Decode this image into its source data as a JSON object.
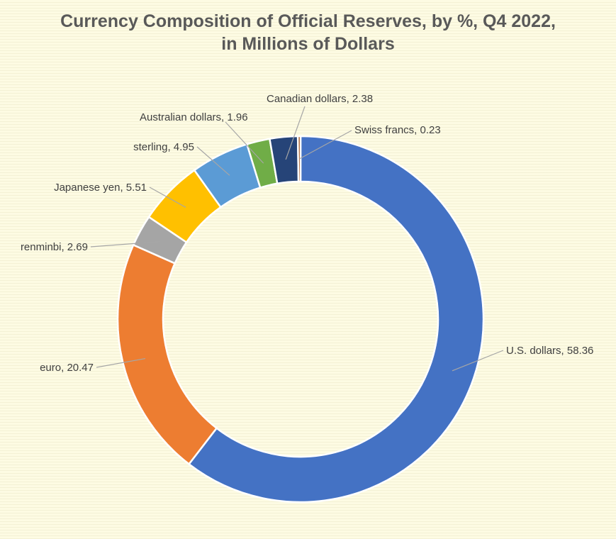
{
  "chart_data": {
    "type": "pie",
    "variant": "donut",
    "title_lines": [
      "Currency Composition of Official Reserves, by %, Q4 2022,",
      "in Millions of Dollars"
    ],
    "legend": "none",
    "slices": [
      {
        "name": "U.S. dollars",
        "value": 58.36,
        "color": "#4472c4",
        "label": "U.S. dollars, 58.36"
      },
      {
        "name": "euro",
        "value": 20.47,
        "color": "#ed7d31",
        "label": "euro, 20.47"
      },
      {
        "name": "renminbi",
        "value": 2.69,
        "color": "#a5a5a5",
        "label": "renminbi, 2.69"
      },
      {
        "name": "Japanese yen",
        "value": 5.51,
        "color": "#ffc000",
        "label": "Japanese yen, 5.51"
      },
      {
        "name": "sterling",
        "value": 4.95,
        "color": "#5b9bd5",
        "label": "sterling, 4.95"
      },
      {
        "name": "Australian dollars",
        "value": 1.96,
        "color": "#70ad47",
        "label": "Australian dollars, 1.96"
      },
      {
        "name": "Canadian dollars",
        "value": 2.38,
        "color": "#264478",
        "label": "Canadian dollars, 2.38"
      },
      {
        "name": "Swiss francs",
        "value": 0.23,
        "color": "#9e480e",
        "label": "Swiss francs, 0.23"
      }
    ]
  }
}
